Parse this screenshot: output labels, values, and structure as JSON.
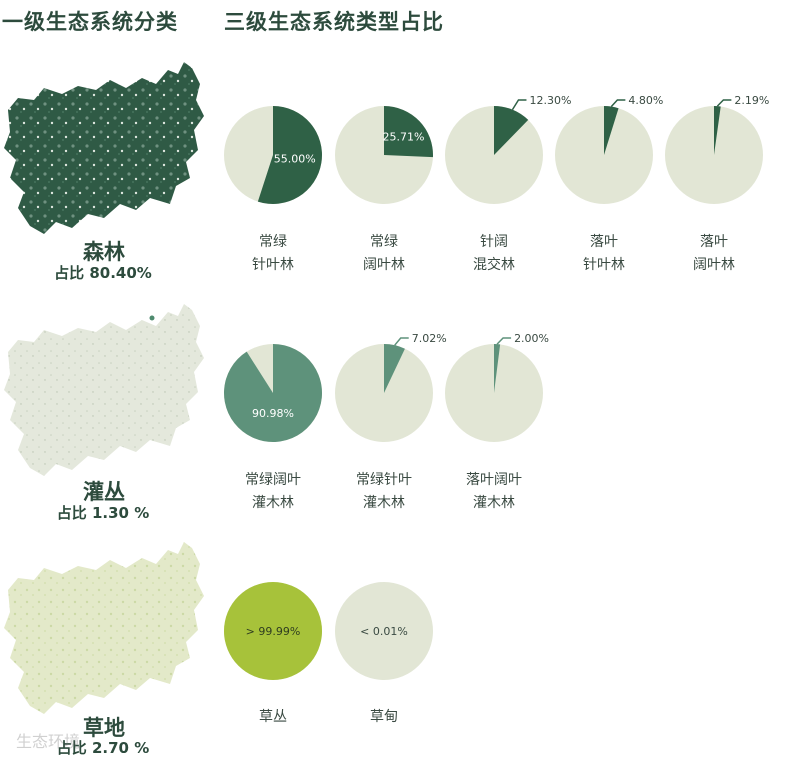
{
  "headers": {
    "left": "一级生态系统分类",
    "right": "三级生态系统类型占比"
  },
  "colors": {
    "forest_dark": "#2f6146",
    "shrub_mid": "#5e927b",
    "grass_lime": "#a7c23a",
    "pie_bg": "#e2e6d5",
    "text_dark": "#2d4b3d"
  },
  "categories": [
    {
      "name": "森林",
      "share": "占比 80.40%",
      "map_color": "#2f5a45"
    },
    {
      "name": "灌丛",
      "share": "占比 1.30 %",
      "map_color": "#e4e8dc"
    },
    {
      "name": "草地",
      "share": "占比 2.70 %",
      "map_color": "#e3e9c9"
    }
  ],
  "watermark": "生态环境",
  "chart_data": [
    {
      "type": "pie",
      "group": "森林",
      "items": [
        {
          "label_line1": "常绿",
          "label_line2": "针叶林",
          "value": 55.0,
          "value_label": "55.00%",
          "color": "#2f6146",
          "label_pos": "inside"
        },
        {
          "label_line1": "常绿",
          "label_line2": "阔叶林",
          "value": 25.71,
          "value_label": "25.71%",
          "color": "#2f6146",
          "label_pos": "inside"
        },
        {
          "label_line1": "针阔",
          "label_line2": "混交林",
          "value": 12.3,
          "value_label": "12.30%",
          "color": "#2f6146",
          "label_pos": "callout"
        },
        {
          "label_line1": "落叶",
          "label_line2": "针叶林",
          "value": 4.8,
          "value_label": "4.80%",
          "color": "#2f6146",
          "label_pos": "callout"
        },
        {
          "label_line1": "落叶",
          "label_line2": "阔叶林",
          "value": 2.19,
          "value_label": "2.19%",
          "color": "#2f6146",
          "label_pos": "callout"
        }
      ]
    },
    {
      "type": "pie",
      "group": "灌丛",
      "items": [
        {
          "label_line1": "常绿阔叶",
          "label_line2": "灌木林",
          "value": 90.98,
          "value_label": "90.98%",
          "color": "#5e927b",
          "label_pos": "inside"
        },
        {
          "label_line1": "常绿针叶",
          "label_line2": "灌木林",
          "value": 7.02,
          "value_label": "7.02%",
          "color": "#5e927b",
          "label_pos": "callout"
        },
        {
          "label_line1": "落叶阔叶",
          "label_line2": "灌木林",
          "value": 2.0,
          "value_label": "2.00%",
          "color": "#5e927b",
          "label_pos": "callout"
        }
      ]
    },
    {
      "type": "pie",
      "group": "草地",
      "items": [
        {
          "label_line1": "草丛",
          "label_line2": "",
          "value": 100.0,
          "value_label": "> 99.99%",
          "color": "#a7c23a",
          "label_pos": "center"
        },
        {
          "label_line1": "草甸",
          "label_line2": "",
          "value": 0.0,
          "value_label": "< 0.01%",
          "color": "#a7c23a",
          "label_pos": "center"
        }
      ]
    }
  ]
}
